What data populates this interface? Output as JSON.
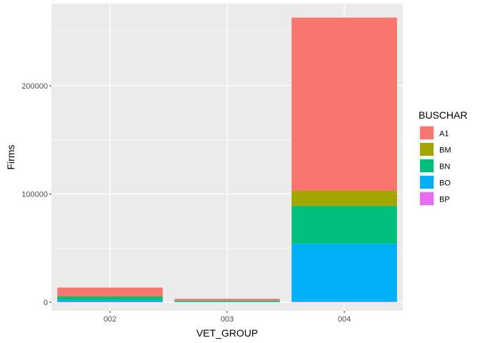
{
  "chart_data": {
    "type": "bar",
    "stacked": true,
    "xlabel": "VET_GROUP",
    "ylabel": "Firms",
    "categories": [
      "002",
      "003",
      "004"
    ],
    "ylim": [
      -8000,
      276000
    ],
    "yticks": [
      0,
      100000,
      200000
    ],
    "ytick_labels": [
      "0",
      "100000",
      "200000"
    ],
    "grid": true,
    "legend_title": "BUSCHAR",
    "legend_position": "right",
    "series": [
      {
        "name": "BP",
        "color": "#E76BF3",
        "values": [
          200,
          50,
          500
        ]
      },
      {
        "name": "BO",
        "color": "#00B0F6",
        "values": [
          2000,
          400,
          53500
        ]
      },
      {
        "name": "BN",
        "color": "#00BF7D",
        "values": [
          3000,
          900,
          35000
        ]
      },
      {
        "name": "BM",
        "color": "#A3A500",
        "values": [
          300,
          200,
          14000
        ]
      },
      {
        "name": "A1",
        "color": "#F8766D",
        "values": [
          8000,
          1600,
          160000
        ]
      }
    ],
    "legend_order": [
      "A1",
      "BM",
      "BN",
      "BO",
      "BP"
    ]
  }
}
